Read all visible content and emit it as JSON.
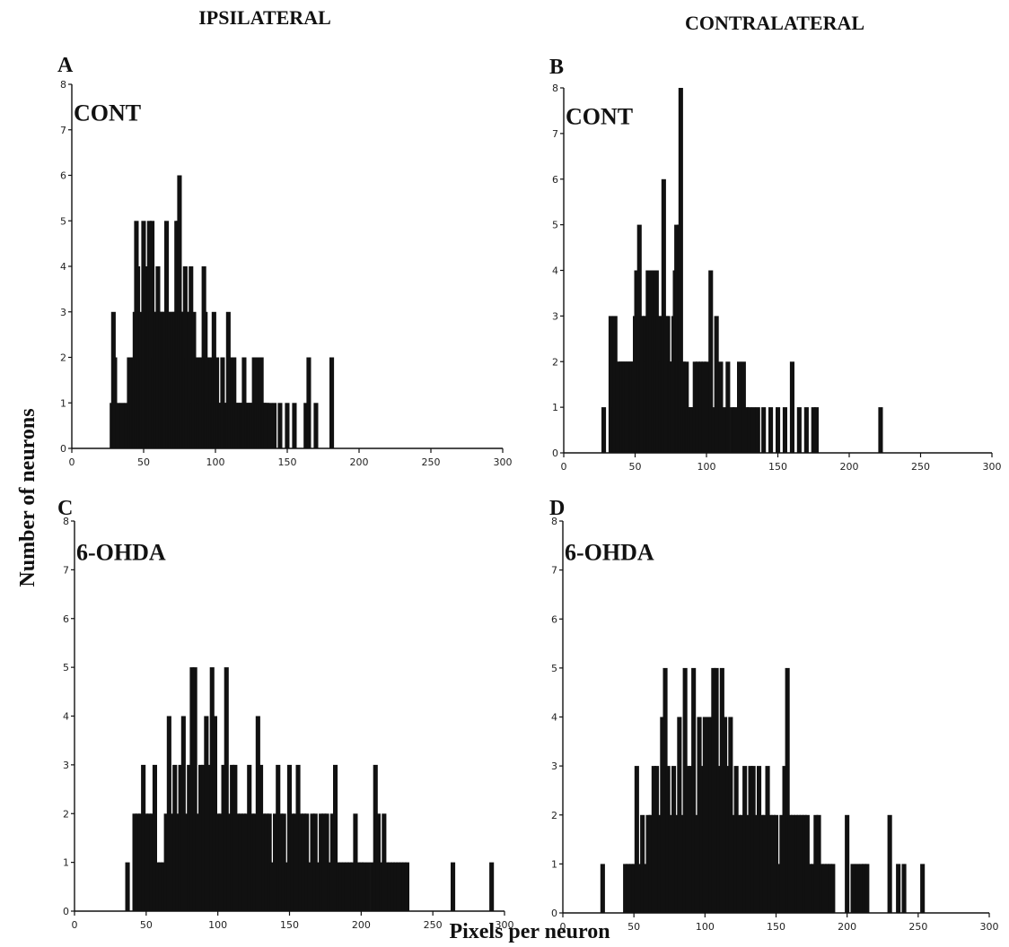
{
  "figure": {
    "columns": [
      "IPSILATERAL",
      "CONTRALATERAL"
    ],
    "ylabel": "Number of neurons",
    "xlabel": "Pixels per neuron"
  },
  "colors": {
    "bars": "#111111",
    "axes": "#111111",
    "background": "#ffffff"
  },
  "chart_data": [
    {
      "type": "bar",
      "panel": "A",
      "label": "CONT",
      "xlim": [
        0,
        300
      ],
      "ylim": [
        0,
        8
      ],
      "xticks": [
        0,
        50,
        100,
        150,
        200,
        250,
        300
      ],
      "yticks": [
        0,
        1,
        2,
        3,
        4,
        5,
        6,
        7,
        8
      ],
      "x": [
        28,
        29,
        30,
        32,
        35,
        38,
        40,
        41,
        42,
        43,
        44,
        45,
        46,
        47,
        48,
        49,
        50,
        51,
        52,
        53,
        54,
        55,
        56,
        57,
        58,
        59,
        60,
        61,
        62,
        63,
        64,
        65,
        66,
        67,
        68,
        69,
        70,
        71,
        72,
        73,
        74,
        75,
        76,
        77,
        78,
        79,
        80,
        81,
        82,
        83,
        84,
        85,
        86,
        87,
        88,
        89,
        90,
        91,
        92,
        93,
        94,
        95,
        96,
        97,
        98,
        99,
        100,
        101,
        102,
        103,
        104,
        105,
        106,
        107,
        108,
        109,
        110,
        111,
        112,
        113,
        114,
        115,
        116,
        117,
        118,
        119,
        120,
        121,
        122,
        123,
        124,
        125,
        126,
        127,
        128,
        129,
        130,
        131,
        132,
        133,
        134,
        135,
        136,
        138,
        141,
        145,
        150,
        155,
        163,
        165,
        170,
        181
      ],
      "y": [
        1,
        3,
        2,
        1,
        1,
        1,
        2,
        2,
        2,
        2,
        3,
        5,
        4,
        2,
        3,
        2,
        5,
        3,
        4,
        3,
        5,
        3,
        5,
        2,
        3,
        3,
        4,
        3,
        3,
        3,
        3,
        3,
        5,
        3,
        3,
        2,
        3,
        3,
        3,
        5,
        5,
        6,
        3,
        3,
        3,
        4,
        2,
        3,
        3,
        4,
        1,
        3,
        2,
        2,
        2,
        1,
        2,
        2,
        4,
        3,
        2,
        1,
        2,
        2,
        1,
        3,
        2,
        2,
        1,
        1,
        1,
        2,
        1,
        1,
        1,
        3,
        1,
        2,
        2,
        2,
        1,
        1,
        1,
        1,
        1,
        1,
        2,
        1,
        1,
        1,
        1,
        1,
        1,
        2,
        2,
        1,
        1,
        2,
        2,
        1,
        1,
        1,
        1,
        1,
        1,
        1,
        1,
        1,
        1,
        2,
        1,
        2
      ]
    },
    {
      "type": "bar",
      "panel": "B",
      "label": "CONT",
      "xlim": [
        0,
        300
      ],
      "ylim": [
        0,
        8
      ],
      "xticks": [
        0,
        50,
        100,
        150,
        200,
        250,
        300
      ],
      "yticks": [
        0,
        1,
        2,
        3,
        4,
        5,
        6,
        7,
        8
      ],
      "x": [
        28,
        33,
        35,
        36,
        38,
        39,
        40,
        41,
        42,
        43,
        44,
        45,
        46,
        47,
        48,
        49,
        50,
        51,
        52,
        53,
        54,
        55,
        56,
        57,
        58,
        59,
        60,
        61,
        62,
        63,
        64,
        65,
        66,
        67,
        68,
        69,
        70,
        71,
        72,
        73,
        74,
        75,
        76,
        77,
        78,
        79,
        80,
        81,
        82,
        83,
        84,
        85,
        86,
        87,
        88,
        89,
        90,
        92,
        94,
        96,
        98,
        100,
        103,
        105,
        107,
        110,
        112,
        115,
        118,
        120,
        123,
        126,
        128,
        130,
        133,
        136,
        140,
        145,
        150,
        155,
        160,
        165,
        170,
        175,
        177,
        222
      ],
      "y": [
        1,
        3,
        1,
        3,
        2,
        2,
        2,
        2,
        2,
        2,
        2,
        2,
        2,
        2,
        2,
        2,
        3,
        4,
        3,
        5,
        2,
        3,
        3,
        3,
        2,
        4,
        4,
        4,
        4,
        3,
        4,
        4,
        3,
        3,
        2,
        3,
        6,
        2,
        3,
        3,
        2,
        2,
        2,
        3,
        4,
        5,
        4,
        5,
        8,
        2,
        2,
        1,
        2,
        1,
        1,
        1,
        1,
        2,
        2,
        2,
        2,
        2,
        4,
        1,
        3,
        2,
        1,
        2,
        1,
        1,
        2,
        2,
        1,
        1,
        1,
        1,
        1,
        1,
        1,
        1,
        2,
        1,
        1,
        1,
        1,
        1
      ]
    },
    {
      "type": "bar",
      "panel": "C",
      "label": "6-OHDA",
      "xlim": [
        0,
        300
      ],
      "ylim": [
        0,
        8
      ],
      "xticks": [
        0,
        50,
        100,
        150,
        200,
        250,
        300
      ],
      "yticks": [
        0,
        1,
        2,
        3,
        4,
        5,
        6,
        7,
        8
      ],
      "x": [
        37,
        42,
        44,
        46,
        48,
        50,
        52,
        54,
        56,
        58,
        60,
        62,
        64,
        66,
        68,
        70,
        72,
        74,
        76,
        78,
        80,
        82,
        84,
        86,
        88,
        90,
        92,
        94,
        96,
        98,
        100,
        102,
        104,
        106,
        108,
        110,
        112,
        114,
        116,
        118,
        120,
        122,
        124,
        126,
        128,
        130,
        132,
        134,
        136,
        138,
        140,
        142,
        144,
        146,
        148,
        150,
        152,
        154,
        156,
        158,
        160,
        162,
        164,
        166,
        168,
        170,
        172,
        174,
        176,
        178,
        180,
        182,
        184,
        186,
        188,
        190,
        192,
        194,
        196,
        198,
        200,
        202,
        205,
        208,
        210,
        212,
        214,
        216,
        218,
        220,
        222,
        224,
        226,
        228,
        230,
        232,
        264,
        291
      ],
      "y": [
        1,
        2,
        2,
        2,
        3,
        2,
        2,
        2,
        3,
        1,
        1,
        1,
        2,
        4,
        2,
        3,
        2,
        3,
        4,
        2,
        3,
        5,
        5,
        2,
        3,
        3,
        4,
        3,
        5,
        4,
        2,
        2,
        3,
        5,
        2,
        3,
        3,
        2,
        2,
        2,
        2,
        3,
        2,
        2,
        4,
        3,
        2,
        2,
        2,
        1,
        2,
        3,
        2,
        2,
        1,
        3,
        2,
        2,
        3,
        2,
        2,
        2,
        1,
        2,
        2,
        1,
        2,
        2,
        2,
        1,
        2,
        3,
        1,
        1,
        1,
        1,
        1,
        1,
        2,
        1,
        1,
        1,
        1,
        1,
        3,
        2,
        1,
        2,
        1,
        1,
        1,
        1,
        1,
        1,
        1,
        1,
        1,
        1
      ]
    },
    {
      "type": "bar",
      "panel": "D",
      "label": "6-OHDA",
      "xlim": [
        0,
        300
      ],
      "ylim": [
        0,
        8
      ],
      "xticks": [
        0,
        50,
        100,
        150,
        200,
        250,
        300
      ],
      "yticks": [
        0,
        1,
        2,
        3,
        4,
        5,
        6,
        7,
        8
      ],
      "x": [
        28,
        44,
        46,
        48,
        50,
        52,
        54,
        56,
        58,
        60,
        62,
        64,
        66,
        68,
        70,
        72,
        74,
        76,
        78,
        80,
        82,
        84,
        86,
        88,
        90,
        92,
        94,
        96,
        98,
        100,
        102,
        104,
        106,
        108,
        110,
        112,
        114,
        116,
        118,
        120,
        122,
        124,
        126,
        128,
        130,
        132,
        134,
        136,
        138,
        140,
        142,
        144,
        146,
        148,
        150,
        152,
        154,
        156,
        158,
        160,
        162,
        164,
        166,
        168,
        170,
        172,
        174,
        176,
        178,
        180,
        182,
        184,
        186,
        188,
        190,
        200,
        204,
        207,
        210,
        212,
        214,
        230,
        236,
        240,
        253
      ],
      "y": [
        1,
        1,
        1,
        1,
        1,
        3,
        1,
        2,
        1,
        2,
        2,
        3,
        3,
        2,
        4,
        5,
        3,
        2,
        3,
        2,
        4,
        2,
        5,
        3,
        3,
        5,
        2,
        4,
        3,
        4,
        4,
        4,
        5,
        5,
        3,
        5,
        4,
        3,
        4,
        2,
        3,
        2,
        2,
        3,
        2,
        3,
        3,
        2,
        3,
        2,
        2,
        3,
        2,
        2,
        2,
        1,
        2,
        3,
        5,
        2,
        2,
        2,
        2,
        2,
        2,
        2,
        1,
        1,
        2,
        2,
        1,
        1,
        1,
        1,
        1,
        2,
        1,
        1,
        1,
        1,
        1,
        2,
        1,
        1,
        1
      ]
    }
  ]
}
